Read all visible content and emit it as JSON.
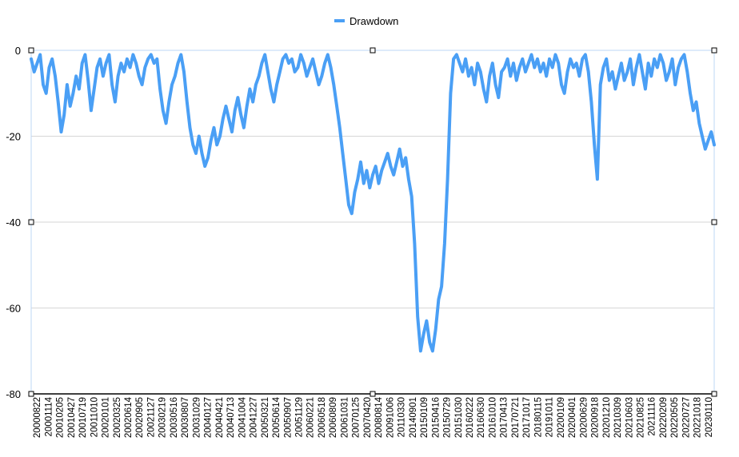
{
  "chart_data": {
    "type": "line",
    "legend": {
      "position": "top-center"
    },
    "ylim": [
      -80,
      0
    ],
    "yticks": [
      0,
      -20,
      -40,
      -60,
      -80
    ],
    "grid": true,
    "x_tick_labels": [
      "20000822",
      "20001114",
      "20010205",
      "20010427",
      "20010719",
      "20011010",
      "20020101",
      "20020325",
      "20020614",
      "20020905",
      "20021127",
      "20030219",
      "20030516",
      "20030807",
      "20031029",
      "20040127",
      "20040421",
      "20040713",
      "20041004",
      "20041227",
      "20050321",
      "20050614",
      "20050907",
      "20051129",
      "20060221",
      "20060518",
      "20060809",
      "20061031",
      "20070125",
      "20070420",
      "20080814",
      "20091006",
      "20110330",
      "20140901",
      "20150109",
      "20150416",
      "20150729",
      "20151030",
      "20160222",
      "20160630",
      "20161010",
      "20170413",
      "20170721",
      "20171017",
      "20180115",
      "20191011",
      "20200109",
      "20200401",
      "20200629",
      "20200918",
      "20201210",
      "20210309",
      "20210603",
      "20210825",
      "20211116",
      "20220209",
      "20220505",
      "20220727",
      "20221018",
      "20230110"
    ],
    "series": [
      {
        "name": "Drawdown",
        "color": "#4a9ff5",
        "values": [
          -2,
          -5,
          -3,
          -1,
          -8,
          -10,
          -4,
          -2,
          -6,
          -12,
          -19,
          -15,
          -8,
          -13,
          -10,
          -6,
          -9,
          -3,
          -1,
          -7,
          -14,
          -9,
          -4,
          -2,
          -6,
          -3,
          -1,
          -8,
          -12,
          -6,
          -3,
          -5,
          -2,
          -4,
          -1,
          -3,
          -6,
          -8,
          -4,
          -2,
          -1,
          -3,
          -2,
          -9,
          -14,
          -17,
          -12,
          -8,
          -6,
          -3,
          -1,
          -5,
          -12,
          -18,
          -22,
          -24,
          -20,
          -24,
          -27,
          -25,
          -21,
          -18,
          -22,
          -20,
          -16,
          -13,
          -16,
          -19,
          -14,
          -11,
          -15,
          -18,
          -13,
          -9,
          -12,
          -8,
          -6,
          -3,
          -1,
          -5,
          -9,
          -12,
          -8,
          -5,
          -2,
          -1,
          -3,
          -2,
          -5,
          -4,
          -1,
          -3,
          -6,
          -4,
          -2,
          -5,
          -8,
          -6,
          -3,
          -1,
          -4,
          -8,
          -13,
          -18,
          -24,
          -30,
          -36,
          -38,
          -33,
          -30,
          -26,
          -31,
          -28,
          -32,
          -29,
          -27,
          -31,
          -28,
          -26,
          -24,
          -27,
          -29,
          -26,
          -23,
          -27,
          -25,
          -30,
          -34,
          -45,
          -62,
          -70,
          -66,
          -63,
          -68,
          -70,
          -65,
          -58,
          -55,
          -45,
          -30,
          -10,
          -2,
          -1,
          -3,
          -5,
          -2,
          -6,
          -4,
          -8,
          -3,
          -5,
          -9,
          -12,
          -6,
          -3,
          -8,
          -11,
          -5,
          -4,
          -2,
          -6,
          -3,
          -7,
          -4,
          -2,
          -5,
          -3,
          -1,
          -4,
          -2,
          -5,
          -3,
          -6,
          -2,
          -4,
          -1,
          -3,
          -8,
          -10,
          -5,
          -2,
          -4,
          -3,
          -6,
          -2,
          -1,
          -5,
          -12,
          -22,
          -30,
          -8,
          -4,
          -2,
          -7,
          -5,
          -9,
          -6,
          -3,
          -7,
          -5,
          -2,
          -8,
          -4,
          -1,
          -5,
          -9,
          -3,
          -6,
          -2,
          -4,
          -1,
          -3,
          -7,
          -5,
          -2,
          -8,
          -4,
          -2,
          -1,
          -5,
          -10,
          -14,
          -12,
          -17,
          -20,
          -23,
          -21,
          -19,
          -22
        ]
      }
    ]
  }
}
